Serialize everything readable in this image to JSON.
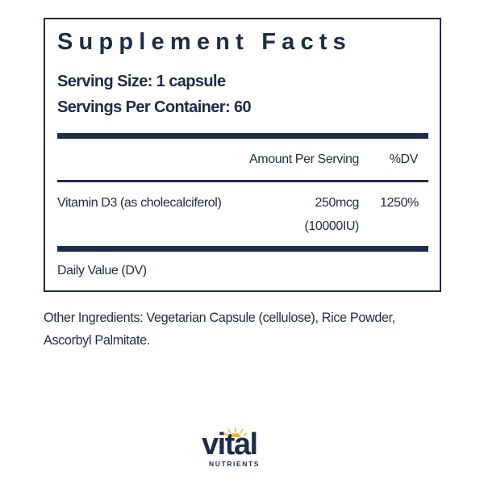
{
  "facts": {
    "title": "Supplement Facts",
    "serving_size": "Serving Size: 1 capsule",
    "servings_per_container": "Servings Per Container: 60",
    "header_amount": "Amount Per Serving",
    "header_dv": "%DV",
    "rows": [
      {
        "name": "Vitamin D3 (as cholecalciferol)",
        "amount": "250mcg",
        "amount_alt": "(10000IU)",
        "dv": "1250%"
      }
    ],
    "footnote": "Daily Value (DV)"
  },
  "other_ingredients": {
    "line1": "Other Ingredients: Vegetarian Capsule (cellulose), Rice Powder,",
    "line2": "Ascorbyl Palmitate."
  },
  "brand": {
    "name": "vital",
    "sub": "NUTRIENTS"
  },
  "colors": {
    "navy": "#1b2d48",
    "sun": "#f2b632"
  }
}
